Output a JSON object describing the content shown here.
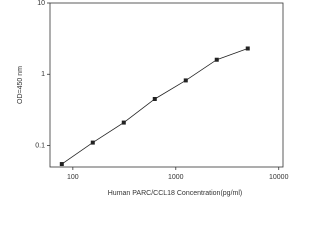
{
  "chart_data": {
    "type": "line",
    "x_scale": "log",
    "y_scale": "log",
    "xlabel": "Human PARC/CCL18 Concentration(pg/ml)",
    "ylabel": "OD=450 nm",
    "x": [
      78.125,
      156.25,
      312.5,
      625,
      1250,
      2500,
      5000
    ],
    "series": [
      {
        "color": "#222222",
        "values": [
          0.055,
          0.11,
          0.21,
          0.45,
          0.82,
          1.6,
          2.3
        ]
      }
    ],
    "xlim": [
      60,
      11000
    ],
    "xticks": [
      100,
      1000,
      10000
    ],
    "ylim": [
      0.05,
      10
    ],
    "yticks": [
      0.1,
      1,
      10
    ]
  }
}
